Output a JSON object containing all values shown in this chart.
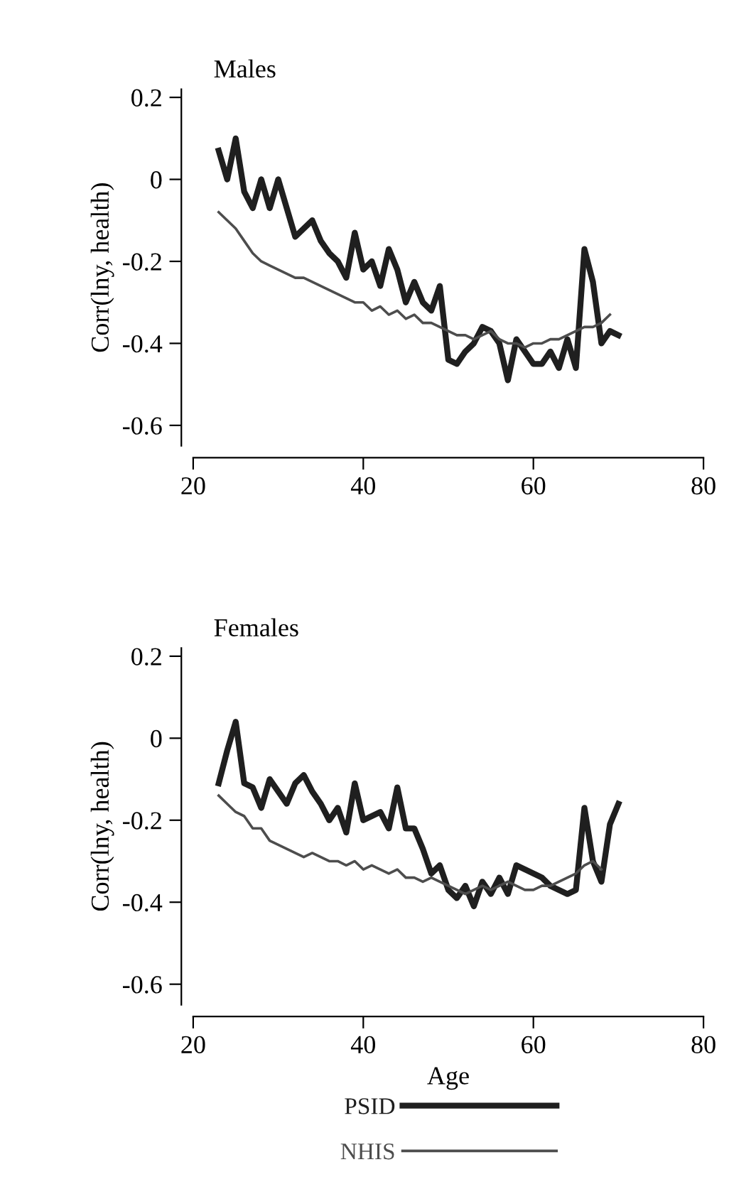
{
  "chart_data": [
    {
      "type": "line",
      "title": "Males",
      "ylabel": "Corr(lny, health)",
      "xlim": [
        20,
        80
      ],
      "xticks": [
        20,
        40,
        60,
        80
      ],
      "ylim": [
        -0.65,
        0.22
      ],
      "yticks": [
        {
          "value": 0.2,
          "label": "0.2"
        },
        0,
        {
          "value": -0.2,
          "label": "-0.2"
        },
        {
          "value": -0.4,
          "label": "-0.4"
        },
        {
          "value": -0.6,
          "label": "-0.6"
        }
      ],
      "grid": false,
      "legend": false,
      "marker": "none",
      "series": [
        {
          "color": "#1f1f1f",
          "x": [
            23,
            24,
            25,
            26,
            27,
            28,
            29,
            30,
            31,
            32,
            33,
            34,
            35,
            36,
            37,
            38,
            39,
            40,
            41,
            42,
            43,
            44,
            45,
            46,
            47,
            48,
            49,
            50,
            51,
            52,
            53,
            54,
            55,
            56,
            57,
            58,
            59,
            60,
            61,
            62,
            63,
            64,
            65,
            66,
            67,
            68,
            69,
            70
          ],
          "values": [
            0.07,
            0.0,
            0.1,
            -0.03,
            -0.07,
            0.0,
            -0.07,
            0.0,
            -0.07,
            -0.14,
            -0.12,
            -0.1,
            -0.15,
            -0.18,
            -0.2,
            -0.24,
            -0.13,
            -0.22,
            -0.2,
            -0.26,
            -0.17,
            -0.22,
            -0.3,
            -0.25,
            -0.3,
            -0.32,
            -0.26,
            -0.44,
            -0.45,
            -0.42,
            -0.4,
            -0.36,
            -0.37,
            -0.4,
            -0.49,
            -0.39,
            -0.42,
            -0.45,
            -0.45,
            -0.42,
            -0.46,
            -0.39,
            -0.46,
            -0.17,
            -0.25,
            -0.4,
            -0.37,
            -0.38
          ]
        },
        {
          "color": "#4d4d4d",
          "x": [
            23,
            24,
            25,
            26,
            27,
            28,
            29,
            30,
            31,
            32,
            33,
            34,
            35,
            36,
            37,
            38,
            39,
            40,
            41,
            42,
            43,
            44,
            45,
            46,
            47,
            48,
            49,
            50,
            51,
            52,
            53,
            54,
            55,
            56,
            57,
            58,
            59,
            60,
            61,
            62,
            63,
            64,
            65,
            66,
            67,
            68,
            69
          ],
          "values": [
            -0.08,
            -0.1,
            -0.12,
            -0.15,
            -0.18,
            -0.2,
            -0.21,
            -0.22,
            -0.23,
            -0.24,
            -0.24,
            -0.25,
            -0.26,
            -0.27,
            -0.28,
            -0.29,
            -0.3,
            -0.3,
            -0.32,
            -0.31,
            -0.33,
            -0.32,
            -0.34,
            -0.33,
            -0.35,
            -0.35,
            -0.36,
            -0.37,
            -0.38,
            -0.38,
            -0.39,
            -0.38,
            -0.37,
            -0.39,
            -0.4,
            -0.4,
            -0.41,
            -0.4,
            -0.4,
            -0.39,
            -0.39,
            -0.38,
            -0.37,
            -0.36,
            -0.36,
            -0.35,
            -0.33
          ]
        }
      ]
    },
    {
      "type": "line",
      "title": "Females",
      "ylabel": "Corr(lny, health)",
      "xlabel": "Age",
      "xlim": [
        20,
        80
      ],
      "xticks": [
        20,
        40,
        60,
        80
      ],
      "ylim": [
        -0.65,
        0.22
      ],
      "yticks": [
        {
          "value": 0.2,
          "label": "0.2"
        },
        0,
        {
          "value": -0.2,
          "label": "-0.2"
        },
        {
          "value": -0.4,
          "label": "-0.4"
        },
        {
          "value": -0.6,
          "label": "-0.6"
        }
      ],
      "grid": false,
      "legend": "bottom",
      "marker": "none",
      "series": [
        {
          "name": "PSID",
          "color": "#1f1f1f",
          "x": [
            23,
            24,
            25,
            26,
            27,
            28,
            29,
            30,
            31,
            32,
            33,
            34,
            35,
            36,
            37,
            38,
            39,
            40,
            41,
            42,
            43,
            44,
            45,
            46,
            47,
            48,
            49,
            50,
            51,
            52,
            53,
            54,
            55,
            56,
            57,
            58,
            59,
            60,
            61,
            62,
            63,
            64,
            65,
            66,
            67,
            68,
            69,
            70
          ],
          "values": [
            -0.11,
            -0.03,
            0.04,
            -0.11,
            -0.12,
            -0.17,
            -0.1,
            -0.13,
            -0.16,
            -0.11,
            -0.09,
            -0.13,
            -0.16,
            -0.2,
            -0.17,
            -0.23,
            -0.11,
            -0.2,
            -0.19,
            -0.18,
            -0.22,
            -0.12,
            -0.22,
            -0.22,
            -0.27,
            -0.33,
            -0.31,
            -0.37,
            -0.39,
            -0.36,
            -0.41,
            -0.35,
            -0.38,
            -0.34,
            -0.38,
            -0.31,
            -0.32,
            -0.33,
            -0.34,
            -0.36,
            -0.37,
            -0.38,
            -0.37,
            -0.17,
            -0.3,
            -0.35,
            -0.21,
            -0.16
          ]
        },
        {
          "name": "NHIS",
          "color": "#4d4d4d",
          "x": [
            23,
            24,
            25,
            26,
            27,
            28,
            29,
            30,
            31,
            32,
            33,
            34,
            35,
            36,
            37,
            38,
            39,
            40,
            41,
            42,
            43,
            44,
            45,
            46,
            47,
            48,
            49,
            50,
            51,
            52,
            53,
            54,
            55,
            56,
            57,
            58,
            59,
            60,
            61,
            62,
            63,
            64,
            65,
            66,
            67,
            68
          ],
          "values": [
            -0.14,
            -0.16,
            -0.18,
            -0.19,
            -0.22,
            -0.22,
            -0.25,
            -0.26,
            -0.27,
            -0.28,
            -0.29,
            -0.28,
            -0.29,
            -0.3,
            -0.3,
            -0.31,
            -0.3,
            -0.32,
            -0.31,
            -0.32,
            -0.33,
            -0.32,
            -0.34,
            -0.34,
            -0.35,
            -0.34,
            -0.35,
            -0.36,
            -0.37,
            -0.38,
            -0.37,
            -0.36,
            -0.37,
            -0.36,
            -0.35,
            -0.36,
            -0.37,
            -0.37,
            -0.36,
            -0.36,
            -0.35,
            -0.34,
            -0.33,
            -0.31,
            -0.3,
            -0.32
          ]
        }
      ]
    }
  ]
}
